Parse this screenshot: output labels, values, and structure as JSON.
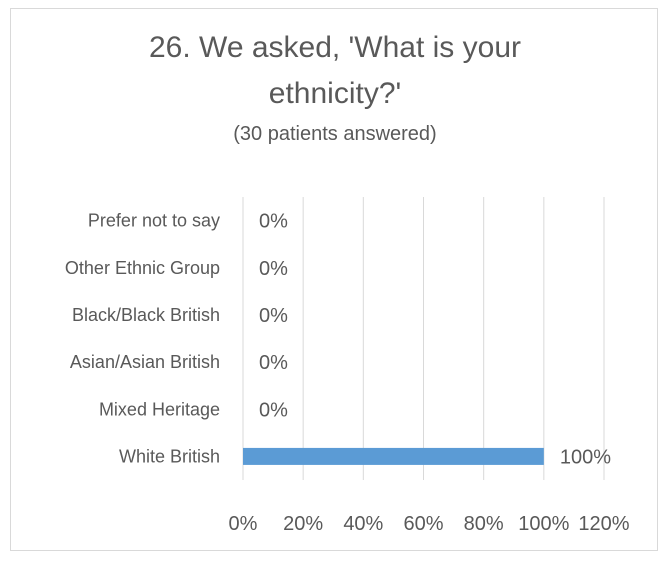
{
  "chart_data": {
    "type": "bar",
    "orientation": "horizontal",
    "title_line1": "26. We asked, 'What is your",
    "title_line2": "ethnicity?'",
    "subtitle": "(30 patients answered)",
    "categories": [
      "White British",
      "Mixed Heritage",
      "Asian/Asian British",
      "Black/Black British",
      "Other Ethnic Group",
      "Prefer not to say"
    ],
    "values": [
      100,
      0,
      0,
      0,
      0,
      0
    ],
    "data_labels": [
      "100%",
      "0%",
      "0%",
      "0%",
      "0%",
      "0%"
    ],
    "xlim": [
      0,
      120
    ],
    "ticks": [
      0,
      20,
      40,
      60,
      80,
      100,
      120
    ],
    "tick_labels": [
      "0%",
      "20%",
      "40%",
      "60%",
      "80%",
      "100%",
      "120%"
    ],
    "xlabel": "",
    "ylabel": "",
    "grid": true,
    "legend": "none",
    "bar_color": "#5b9bd5",
    "grid_color": "#d9d9d9",
    "text_color": "#595959"
  }
}
